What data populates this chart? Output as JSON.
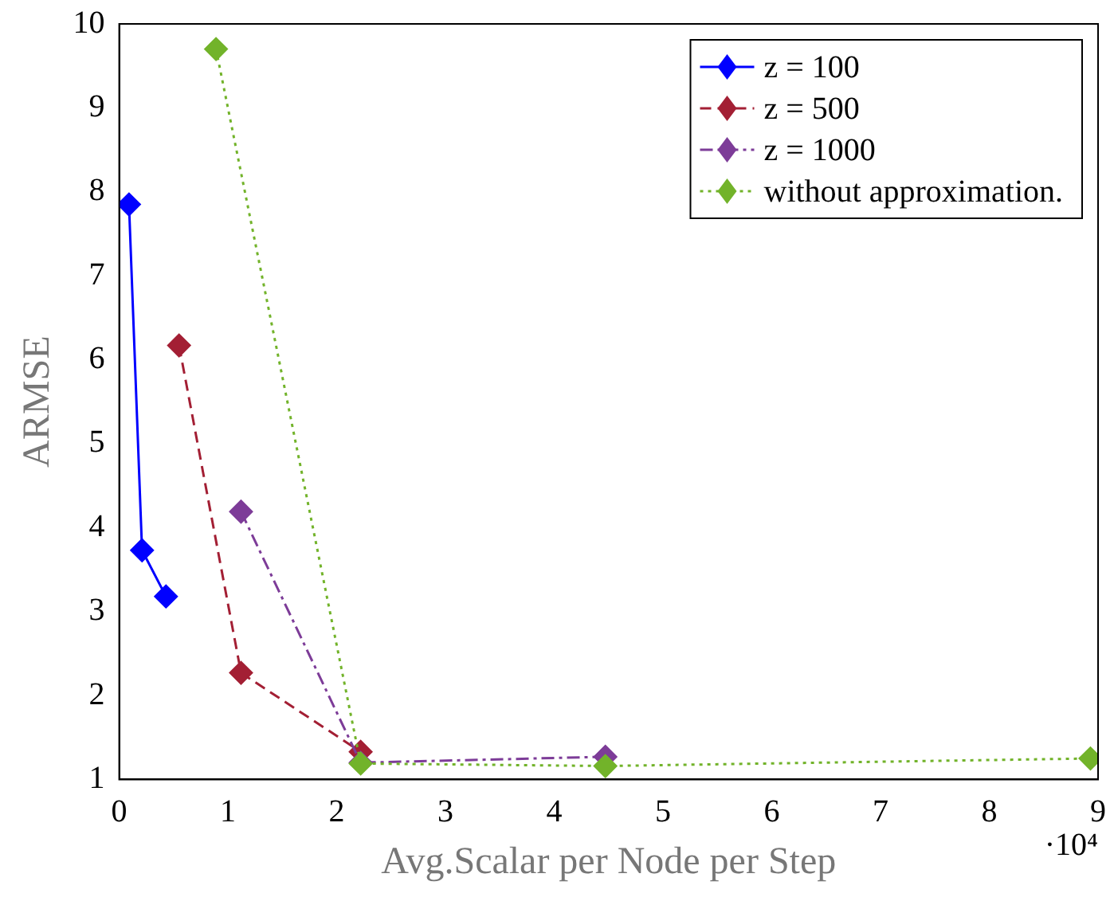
{
  "chart_data": {
    "type": "line",
    "xlabel": "Avg.Scalar per Node per Step",
    "ylabel": "ARMSE",
    "annotations": [
      "·10⁴"
    ],
    "xlim": [
      0,
      9
    ],
    "xticks": [
      0,
      1,
      2,
      3,
      4,
      5,
      6,
      7,
      8,
      9
    ],
    "ylim": [
      1,
      10
    ],
    "yticks": [
      1,
      2,
      3,
      4,
      5,
      6,
      7,
      8,
      9,
      10
    ],
    "grid": false,
    "legend": "top right",
    "marker": "diamond",
    "series": [
      {
        "name": "z = 100",
        "color": "#0000ff",
        "line_style": "solid",
        "x": [
          0.09,
          0.21,
          0.43
        ],
        "values": [
          7.85,
          3.73,
          3.18
        ]
      },
      {
        "name": "z = 500",
        "color": "#a31f34",
        "line_style": "dashed",
        "x": [
          0.55,
          1.12,
          2.22
        ],
        "values": [
          6.17,
          2.27,
          1.33
        ]
      },
      {
        "name": "z = 1000",
        "color": "#7d3c98",
        "line_style": "dashdot",
        "x": [
          1.12,
          2.22,
          4.47
        ],
        "values": [
          4.19,
          1.2,
          1.27
        ]
      },
      {
        "name": "without approximation.",
        "color": "#72b32a",
        "line_style": "dotted",
        "x": [
          0.89,
          2.22,
          4.47,
          8.93
        ],
        "values": [
          9.7,
          1.19,
          1.16,
          1.25
        ]
      }
    ]
  }
}
